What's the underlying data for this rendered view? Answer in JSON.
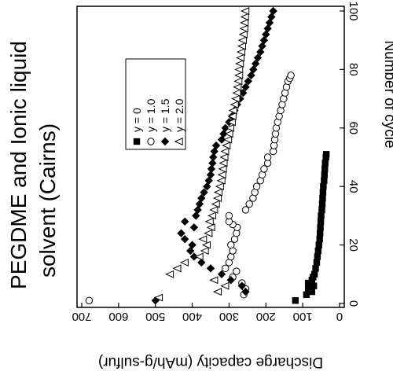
{
  "chart_data": {
    "type": "scatter",
    "title_lines": [
      "PEGDME and Ionic liquid",
      "solvent (Cairns)"
    ],
    "xlabel": "Number of cycle",
    "ylabel": "Discharge capacity (mAh/g-sulfur)",
    "xlim": [
      0,
      100
    ],
    "ylim": [
      0,
      700
    ],
    "x_ticks": [
      "0",
      "20",
      "40",
      "60",
      "80",
      "100"
    ],
    "y_ticks": [
      "0",
      "100",
      "200",
      "300",
      "400",
      "500",
      "600",
      "700"
    ],
    "rotation": "rotated 90 degrees clockwise",
    "legend_position": "inside plot, near right edge",
    "series": [
      {
        "name": "y = 0",
        "marker": "filled-square",
        "points": [
          [
            1,
            120
          ],
          [
            3,
            90
          ],
          [
            4,
            75
          ],
          [
            5,
            85
          ],
          [
            6,
            70
          ],
          [
            7,
            85
          ],
          [
            8,
            75
          ],
          [
            9,
            72
          ],
          [
            10,
            68
          ],
          [
            12,
            65
          ],
          [
            14,
            62
          ],
          [
            16,
            60
          ],
          [
            18,
            58
          ],
          [
            20,
            56
          ],
          [
            22,
            54
          ],
          [
            24,
            53
          ],
          [
            26,
            52
          ],
          [
            28,
            51
          ],
          [
            30,
            50
          ],
          [
            32,
            48
          ],
          [
            34,
            47
          ],
          [
            36,
            46
          ],
          [
            38,
            45
          ],
          [
            40,
            44
          ],
          [
            42,
            42
          ],
          [
            44,
            41
          ],
          [
            46,
            40
          ],
          [
            48,
            39
          ],
          [
            50,
            37
          ],
          [
            51,
            36
          ]
        ]
      },
      {
        "name": "y = 1.0",
        "marker": "open-circle",
        "points": [
          [
            1,
            680
          ],
          [
            3,
            260
          ],
          [
            5,
            255
          ],
          [
            7,
            265
          ],
          [
            9,
            290
          ],
          [
            11,
            280
          ],
          [
            12,
            310
          ],
          [
            14,
            300
          ],
          [
            16,
            295
          ],
          [
            18,
            290
          ],
          [
            20,
            295
          ],
          [
            22,
            285
          ],
          [
            24,
            280
          ],
          [
            26,
            278
          ],
          [
            27,
            290
          ],
          [
            28,
            300
          ],
          [
            30,
            300
          ],
          [
            32,
            255
          ],
          [
            34,
            245
          ],
          [
            36,
            235
          ],
          [
            38,
            230
          ],
          [
            40,
            225
          ],
          [
            42,
            215
          ],
          [
            44,
            210
          ],
          [
            46,
            205
          ],
          [
            48,
            195
          ],
          [
            50,
            195
          ],
          [
            52,
            180
          ],
          [
            54,
            178
          ],
          [
            56,
            176
          ],
          [
            58,
            174
          ],
          [
            60,
            172
          ],
          [
            62,
            168
          ],
          [
            64,
            164
          ],
          [
            66,
            160
          ],
          [
            68,
            156
          ],
          [
            70,
            152
          ],
          [
            72,
            148
          ],
          [
            74,
            144
          ],
          [
            76,
            140
          ],
          [
            77,
            135
          ],
          [
            78,
            132
          ]
        ]
      },
      {
        "name": "y = 1.5",
        "marker": "filled-diamond",
        "points": [
          [
            1,
            500
          ],
          [
            4,
            255
          ],
          [
            6,
            265
          ],
          [
            8,
            295
          ],
          [
            10,
            320
          ],
          [
            12,
            350
          ],
          [
            14,
            375
          ],
          [
            16,
            395
          ],
          [
            18,
            405
          ],
          [
            20,
            400
          ],
          [
            22,
            420
          ],
          [
            24,
            430
          ],
          [
            26,
            395
          ],
          [
            28,
            420
          ],
          [
            30,
            390
          ],
          [
            32,
            385
          ],
          [
            34,
            380
          ],
          [
            36,
            375
          ],
          [
            38,
            368
          ],
          [
            40,
            360
          ],
          [
            42,
            355
          ],
          [
            44,
            350
          ],
          [
            46,
            348
          ],
          [
            48,
            345
          ],
          [
            50,
            343
          ],
          [
            52,
            340
          ],
          [
            54,
            335
          ],
          [
            56,
            320
          ],
          [
            58,
            315
          ],
          [
            60,
            310
          ],
          [
            62,
            300
          ],
          [
            64,
            292
          ],
          [
            66,
            285
          ],
          [
            68,
            278
          ],
          [
            70,
            270
          ],
          [
            72,
            262
          ],
          [
            74,
            255
          ],
          [
            76,
            248
          ],
          [
            78,
            240
          ],
          [
            80,
            234
          ],
          [
            82,
            228
          ],
          [
            84,
            222
          ],
          [
            86,
            215
          ],
          [
            88,
            210
          ],
          [
            90,
            205
          ],
          [
            92,
            200
          ],
          [
            94,
            195
          ],
          [
            96,
            190
          ],
          [
            98,
            185
          ],
          [
            100,
            180
          ]
        ]
      },
      {
        "name": "y = 2.0",
        "marker": "open-triangle",
        "points": [
          [
            2,
            490
          ],
          [
            4,
            330
          ],
          [
            6,
            310
          ],
          [
            8,
            340
          ],
          [
            10,
            460
          ],
          [
            12,
            440
          ],
          [
            14,
            420
          ],
          [
            16,
            380
          ],
          [
            18,
            365
          ],
          [
            20,
            360
          ],
          [
            22,
            370
          ],
          [
            24,
            355
          ],
          [
            26,
            348
          ],
          [
            28,
            352
          ],
          [
            30,
            345
          ],
          [
            32,
            340
          ],
          [
            34,
            335
          ],
          [
            36,
            330
          ],
          [
            38,
            328
          ],
          [
            40,
            324
          ],
          [
            42,
            320
          ],
          [
            44,
            318
          ],
          [
            46,
            316
          ],
          [
            48,
            314
          ],
          [
            50,
            312
          ],
          [
            52,
            310
          ],
          [
            54,
            306
          ],
          [
            56,
            302
          ],
          [
            58,
            299
          ],
          [
            60,
            296
          ],
          [
            62,
            292
          ],
          [
            64,
            290
          ],
          [
            66,
            288
          ],
          [
            68,
            284
          ],
          [
            70,
            280
          ],
          [
            72,
            278
          ],
          [
            74,
            276
          ],
          [
            76,
            274
          ],
          [
            78,
            272
          ],
          [
            80,
            272
          ],
          [
            82,
            270
          ],
          [
            84,
            268
          ],
          [
            86,
            266
          ],
          [
            88,
            264
          ],
          [
            90,
            262
          ],
          [
            92,
            260
          ],
          [
            94,
            258
          ],
          [
            96,
            257
          ],
          [
            98,
            256
          ],
          [
            100,
            255
          ]
        ]
      }
    ]
  }
}
